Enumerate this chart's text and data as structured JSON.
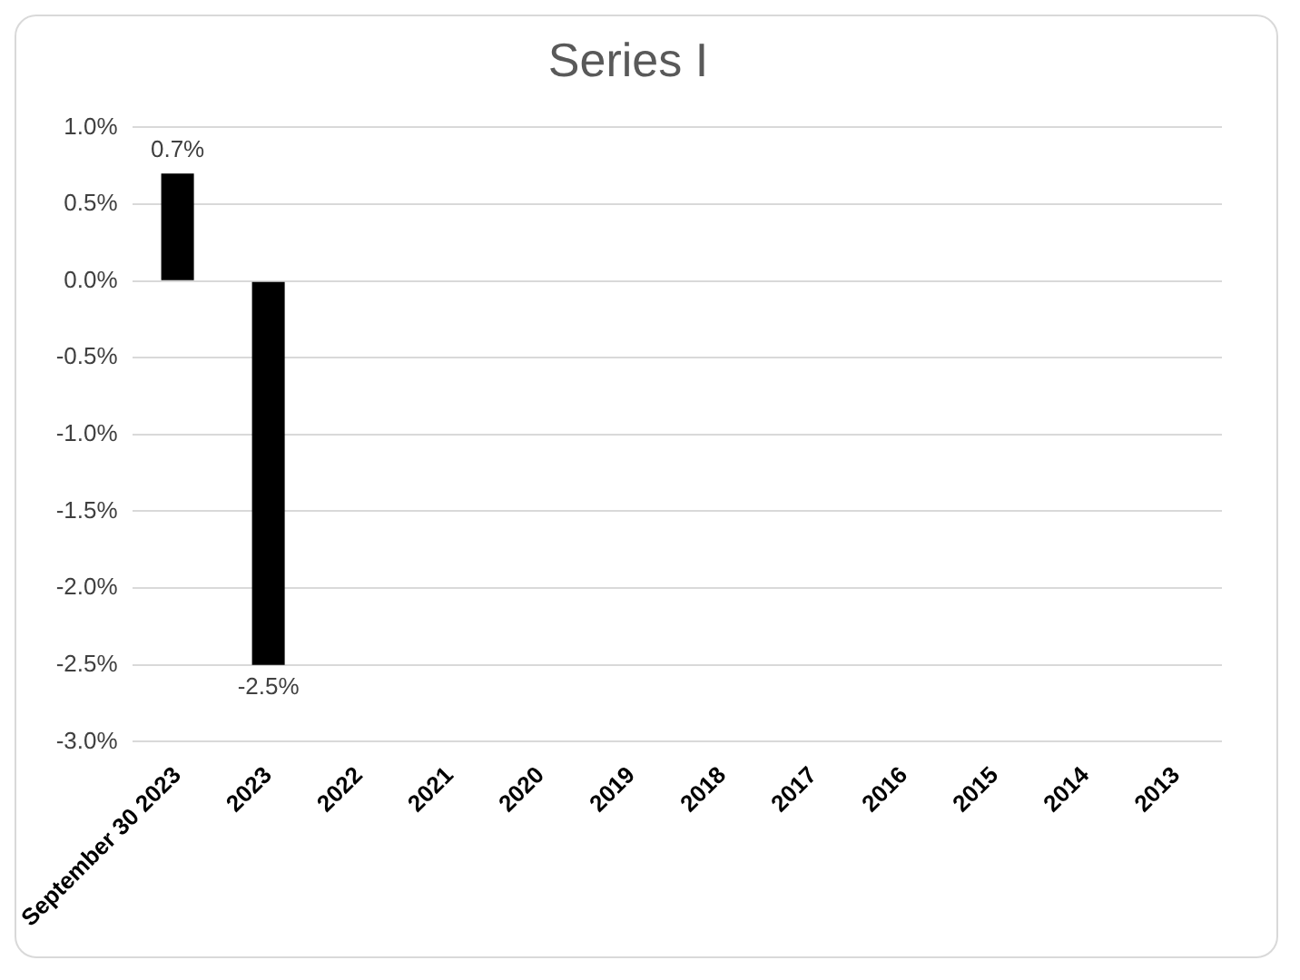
{
  "chart_data": {
    "type": "bar",
    "title": "Series I",
    "categories": [
      "September 30 2023",
      "2023",
      "2022",
      "2021",
      "2020",
      "2019",
      "2018",
      "2017",
      "2016",
      "2015",
      "2014",
      "2013"
    ],
    "values": [
      0.7,
      -2.5,
      null,
      null,
      null,
      null,
      null,
      null,
      null,
      null,
      null,
      null
    ],
    "value_labels": [
      "0.7%",
      "-2.5%",
      null,
      null,
      null,
      null,
      null,
      null,
      null,
      null,
      null,
      null
    ],
    "color": "#000000",
    "ylim": [
      -3,
      1
    ],
    "yticks": [
      {
        "value": -3,
        "label": "-3.0%"
      },
      {
        "value": -2.5,
        "label": "-2.5%"
      },
      {
        "value": -2,
        "label": "-2.0%"
      },
      {
        "value": -1.5,
        "label": "-1.5%"
      },
      {
        "value": -1,
        "label": "-1.0%"
      },
      {
        "value": -0.5,
        "label": "-0.5%"
      },
      {
        "value": 0,
        "label": "0.0%"
      },
      {
        "value": 0.5,
        "label": "0.5%"
      },
      {
        "value": 1,
        "label": "1.0%"
      }
    ],
    "grid": "y",
    "legend": false
  }
}
